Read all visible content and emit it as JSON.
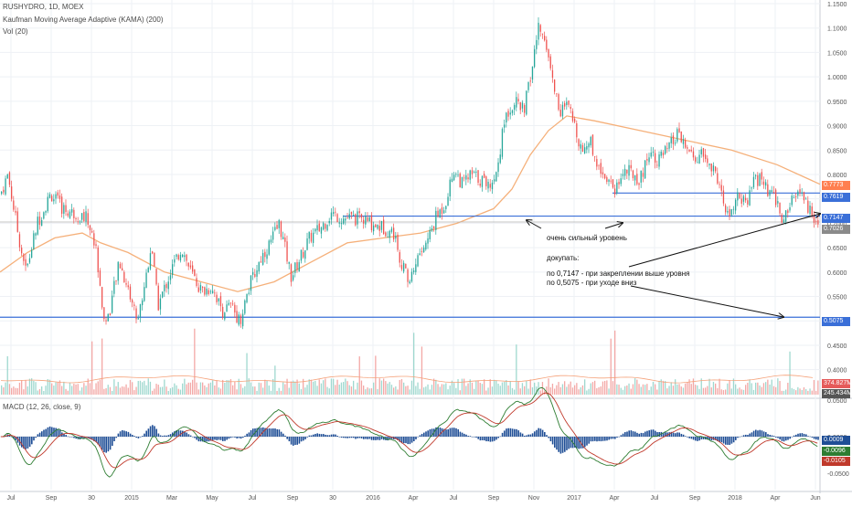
{
  "legend": {
    "symbol": "RUSHYDRO, 1D, MOEX",
    "kama": "Kaufman Moving Average Adaptive (KAMA) (200)",
    "vol": "Vol (20)",
    "macd": "MACD (12, 26, close, 9)"
  },
  "annotations": {
    "strong_level": "очень сильный уровень",
    "buy_title": "докупать:",
    "buy_line1": "по 0,7147 - при закреплении выше уровня",
    "buy_line2": "по 0,5075 - при уходе вниз"
  },
  "price_badges": [
    {
      "label": "0.7773",
      "color": "#ff7f50"
    },
    {
      "label": "0.7619",
      "color": "#3a6fd8"
    },
    {
      "label": "0.7147",
      "color": "#3a6fd8"
    },
    {
      "label": "0.7026",
      "color": "#8a8a8a"
    },
    {
      "label": "0.5075",
      "color": "#3a6fd8"
    }
  ],
  "vol_badges": [
    {
      "label": "374.827M",
      "color": "#e55a5a"
    },
    {
      "label": "245.434M",
      "color": "#555555"
    }
  ],
  "macd_badges": [
    {
      "label": "0.0009",
      "color": "#1f4e96"
    },
    {
      "label": "-0.0096",
      "color": "#2e7d32"
    },
    {
      "label": "-0.0105",
      "color": "#c0392b"
    }
  ],
  "colors": {
    "up": "#26a69a",
    "down": "#ef5350",
    "kama": "#f5b07a",
    "level": "#3a6fd8",
    "grid": "#eef1f5",
    "macd_line": "#2e7d32",
    "signal_line": "#c0392b",
    "hist": "#1f4e96",
    "vol_up": "#9fd8cf",
    "vol_down": "#f3a8a6",
    "vol_ma": "#f5a27a"
  },
  "chart_data": {
    "type": "candlestick",
    "title": "RUSHYDRO, 1D, MOEX",
    "x_ticks": [
      "Jul",
      "Sep",
      "30",
      "2015",
      "Mar",
      "May",
      "Jul",
      "Sep",
      "30",
      "2016",
      "Apr",
      "Jul",
      "Sep",
      "Nov",
      "2017",
      "Apr",
      "Jul",
      "Sep",
      "2018",
      "Apr",
      "Jun"
    ],
    "price_ticks": [
      "1.1500",
      "1.1000",
      "1.0500",
      "1.0000",
      "0.9500",
      "0.9000",
      "0.8500",
      "0.8000",
      "0.7500",
      "0.7000",
      "0.6500",
      "0.6000",
      "0.5500",
      "0.5000",
      "0.4500",
      "0.4000"
    ],
    "price_ylim": [
      0.39,
      1.15
    ],
    "macd_ticks": [
      "0.0500",
      "0.0000",
      "-0.0500"
    ],
    "macd_ylim": [
      -0.065,
      0.05
    ],
    "levels": [
      0.7619,
      0.7147,
      0.5075
    ],
    "last_close": 0.7026,
    "kama_last": 0.7773,
    "price_path": [
      [
        0,
        0.76
      ],
      [
        8,
        0.8
      ],
      [
        20,
        0.67
      ],
      [
        28,
        0.6
      ],
      [
        40,
        0.7
      ],
      [
        55,
        0.76
      ],
      [
        68,
        0.73
      ],
      [
        80,
        0.72
      ],
      [
        95,
        0.71
      ],
      [
        105,
        0.64
      ],
      [
        113,
        0.5
      ],
      [
        118,
        0.51
      ],
      [
        130,
        0.62
      ],
      [
        142,
        0.55
      ],
      [
        150,
        0.5
      ],
      [
        158,
        0.58
      ],
      [
        165,
        0.66
      ],
      [
        172,
        0.53
      ],
      [
        180,
        0.57
      ],
      [
        188,
        0.61
      ],
      [
        198,
        0.65
      ],
      [
        208,
        0.6
      ],
      [
        220,
        0.56
      ],
      [
        232,
        0.57
      ],
      [
        242,
        0.52
      ],
      [
        252,
        0.53
      ],
      [
        262,
        0.5
      ],
      [
        272,
        0.57
      ],
      [
        285,
        0.63
      ],
      [
        295,
        0.66
      ],
      [
        305,
        0.7
      ],
      [
        318,
        0.59
      ],
      [
        328,
        0.63
      ],
      [
        338,
        0.67
      ],
      [
        350,
        0.69
      ],
      [
        362,
        0.72
      ],
      [
        375,
        0.71
      ],
      [
        390,
        0.71
      ],
      [
        405,
        0.7
      ],
      [
        420,
        0.69
      ],
      [
        430,
        0.68
      ],
      [
        440,
        0.61
      ],
      [
        447,
        0.58
      ],
      [
        456,
        0.63
      ],
      [
        466,
        0.66
      ],
      [
        476,
        0.71
      ],
      [
        486,
        0.74
      ],
      [
        496,
        0.81
      ],
      [
        505,
        0.78
      ],
      [
        515,
        0.8
      ],
      [
        525,
        0.79
      ],
      [
        535,
        0.78
      ],
      [
        542,
        0.8
      ],
      [
        552,
        0.92
      ],
      [
        562,
        0.95
      ],
      [
        572,
        0.93
      ],
      [
        580,
        1.0
      ],
      [
        588,
        1.1
      ],
      [
        596,
        1.08
      ],
      [
        604,
        0.99
      ],
      [
        612,
        0.93
      ],
      [
        620,
        0.94
      ],
      [
        628,
        0.9
      ],
      [
        636,
        0.85
      ],
      [
        645,
        0.87
      ],
      [
        655,
        0.81
      ],
      [
        662,
        0.8
      ],
      [
        672,
        0.77
      ],
      [
        682,
        0.81
      ],
      [
        692,
        0.8
      ],
      [
        700,
        0.79
      ],
      [
        710,
        0.85
      ],
      [
        720,
        0.83
      ],
      [
        730,
        0.85
      ],
      [
        740,
        0.88
      ],
      [
        748,
        0.86
      ],
      [
        758,
        0.83
      ],
      [
        768,
        0.84
      ],
      [
        778,
        0.81
      ],
      [
        786,
        0.79
      ],
      [
        792,
        0.72
      ],
      [
        800,
        0.72
      ],
      [
        808,
        0.76
      ],
      [
        816,
        0.73
      ],
      [
        824,
        0.79
      ],
      [
        832,
        0.79
      ],
      [
        840,
        0.76
      ],
      [
        848,
        0.75
      ],
      [
        856,
        0.7
      ],
      [
        864,
        0.74
      ],
      [
        872,
        0.76
      ],
      [
        880,
        0.75
      ],
      [
        888,
        0.71
      ],
      [
        895,
        0.7
      ]
    ],
    "kama_path": [
      [
        0,
        0.6
      ],
      [
        30,
        0.64
      ],
      [
        60,
        0.67
      ],
      [
        90,
        0.68
      ],
      [
        110,
        0.66
      ],
      [
        140,
        0.64
      ],
      [
        180,
        0.6
      ],
      [
        220,
        0.58
      ],
      [
        260,
        0.56
      ],
      [
        300,
        0.58
      ],
      [
        340,
        0.62
      ],
      [
        380,
        0.66
      ],
      [
        420,
        0.67
      ],
      [
        460,
        0.68
      ],
      [
        500,
        0.7
      ],
      [
        540,
        0.73
      ],
      [
        560,
        0.77
      ],
      [
        580,
        0.84
      ],
      [
        600,
        0.89
      ],
      [
        620,
        0.92
      ],
      [
        650,
        0.91
      ],
      [
        700,
        0.89
      ],
      [
        750,
        0.87
      ],
      [
        800,
        0.85
      ],
      [
        850,
        0.82
      ],
      [
        897,
        0.78
      ]
    ]
  }
}
